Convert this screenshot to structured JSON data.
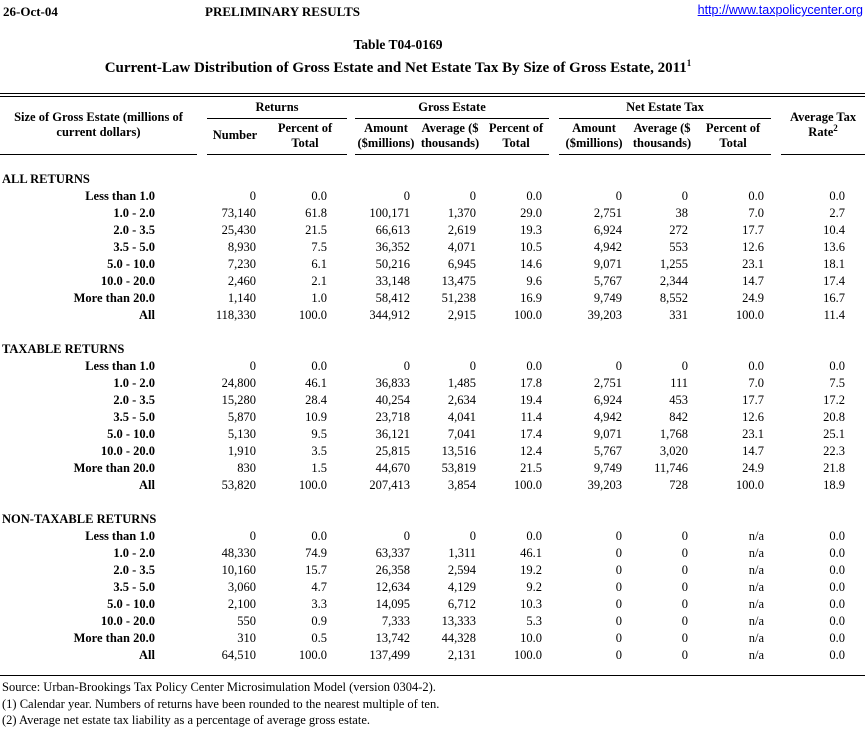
{
  "meta": {
    "date": "26-Oct-04",
    "status": "PRELIMINARY RESULTS",
    "url": "http://www.taxpolicycenter.org"
  },
  "title": {
    "table_number": "Table T04-0169",
    "main": "Current-Law Distribution of Gross Estate and Net Estate Tax By Size of Gross Estate, 2011",
    "superscript": "1"
  },
  "colors": {
    "link": "#0000ff",
    "text": "#000000"
  },
  "table": {
    "size_column_header": "Size of Gross Estate (millions of current dollars)",
    "groups": [
      {
        "label": "Returns",
        "columns": [
          "Number",
          "Percent of Total"
        ]
      },
      {
        "label": "Gross Estate",
        "columns": [
          "Amount ($millions)",
          "Average ($ thousands)",
          "Percent of Total"
        ]
      },
      {
        "label": "Net Estate Tax",
        "columns": [
          "Amount ($millions)",
          "Average ($ thousands)",
          "Percent of Total"
        ]
      }
    ],
    "rate_header": {
      "text": "Average Tax Rate",
      "superscript": "2"
    },
    "sections": [
      {
        "name": "ALL RETURNS",
        "rows": [
          {
            "label": "Less than 1.0",
            "values": [
              "0",
              "0.0",
              "0",
              "0",
              "0.0",
              "0",
              "0",
              "0.0",
              "0.0"
            ]
          },
          {
            "label": "1.0 - 2.0",
            "values": [
              "73,140",
              "61.8",
              "100,171",
              "1,370",
              "29.0",
              "2,751",
              "38",
              "7.0",
              "2.7"
            ]
          },
          {
            "label": "2.0 - 3.5",
            "values": [
              "25,430",
              "21.5",
              "66,613",
              "2,619",
              "19.3",
              "6,924",
              "272",
              "17.7",
              "10.4"
            ]
          },
          {
            "label": "3.5 - 5.0",
            "values": [
              "8,930",
              "7.5",
              "36,352",
              "4,071",
              "10.5",
              "4,942",
              "553",
              "12.6",
              "13.6"
            ]
          },
          {
            "label": "5.0 - 10.0",
            "values": [
              "7,230",
              "6.1",
              "50,216",
              "6,945",
              "14.6",
              "9,071",
              "1,255",
              "23.1",
              "18.1"
            ]
          },
          {
            "label": "10.0 - 20.0",
            "values": [
              "2,460",
              "2.1",
              "33,148",
              "13,475",
              "9.6",
              "5,767",
              "2,344",
              "14.7",
              "17.4"
            ]
          },
          {
            "label": "More than 20.0",
            "values": [
              "1,140",
              "1.0",
              "58,412",
              "51,238",
              "16.9",
              "9,749",
              "8,552",
              "24.9",
              "16.7"
            ]
          },
          {
            "label": "All",
            "values": [
              "118,330",
              "100.0",
              "344,912",
              "2,915",
              "100.0",
              "39,203",
              "331",
              "100.0",
              "11.4"
            ]
          }
        ]
      },
      {
        "name": "TAXABLE RETURNS",
        "rows": [
          {
            "label": "Less than 1.0",
            "values": [
              "0",
              "0.0",
              "0",
              "0",
              "0.0",
              "0",
              "0",
              "0.0",
              "0.0"
            ]
          },
          {
            "label": "1.0 - 2.0",
            "values": [
              "24,800",
              "46.1",
              "36,833",
              "1,485",
              "17.8",
              "2,751",
              "111",
              "7.0",
              "7.5"
            ]
          },
          {
            "label": "2.0 - 3.5",
            "values": [
              "15,280",
              "28.4",
              "40,254",
              "2,634",
              "19.4",
              "6,924",
              "453",
              "17.7",
              "17.2"
            ]
          },
          {
            "label": "3.5 - 5.0",
            "values": [
              "5,870",
              "10.9",
              "23,718",
              "4,041",
              "11.4",
              "4,942",
              "842",
              "12.6",
              "20.8"
            ]
          },
          {
            "label": "5.0 - 10.0",
            "values": [
              "5,130",
              "9.5",
              "36,121",
              "7,041",
              "17.4",
              "9,071",
              "1,768",
              "23.1",
              "25.1"
            ]
          },
          {
            "label": "10.0 - 20.0",
            "values": [
              "1,910",
              "3.5",
              "25,815",
              "13,516",
              "12.4",
              "5,767",
              "3,020",
              "14.7",
              "22.3"
            ]
          },
          {
            "label": "More than 20.0",
            "values": [
              "830",
              "1.5",
              "44,670",
              "53,819",
              "21.5",
              "9,749",
              "11,746",
              "24.9",
              "21.8"
            ]
          },
          {
            "label": "All",
            "values": [
              "53,820",
              "100.0",
              "207,413",
              "3,854",
              "100.0",
              "39,203",
              "728",
              "100.0",
              "18.9"
            ]
          }
        ]
      },
      {
        "name": "NON-TAXABLE RETURNS",
        "rows": [
          {
            "label": "Less than 1.0",
            "values": [
              "0",
              "0.0",
              "0",
              "0",
              "0.0",
              "0",
              "0",
              "n/a",
              "0.0"
            ]
          },
          {
            "label": "1.0 - 2.0",
            "values": [
              "48,330",
              "74.9",
              "63,337",
              "1,311",
              "46.1",
              "0",
              "0",
              "n/a",
              "0.0"
            ]
          },
          {
            "label": "2.0 - 3.5",
            "values": [
              "10,160",
              "15.7",
              "26,358",
              "2,594",
              "19.2",
              "0",
              "0",
              "n/a",
              "0.0"
            ]
          },
          {
            "label": "3.5 - 5.0",
            "values": [
              "3,060",
              "4.7",
              "12,634",
              "4,129",
              "9.2",
              "0",
              "0",
              "n/a",
              "0.0"
            ]
          },
          {
            "label": "5.0 - 10.0",
            "values": [
              "2,100",
              "3.3",
              "14,095",
              "6,712",
              "10.3",
              "0",
              "0",
              "n/a",
              "0.0"
            ]
          },
          {
            "label": "10.0 - 20.0",
            "values": [
              "550",
              "0.9",
              "7,333",
              "13,333",
              "5.3",
              "0",
              "0",
              "n/a",
              "0.0"
            ]
          },
          {
            "label": "More than 20.0",
            "values": [
              "310",
              "0.5",
              "13,742",
              "44,328",
              "10.0",
              "0",
              "0",
              "n/a",
              "0.0"
            ]
          },
          {
            "label": "All",
            "values": [
              "64,510",
              "100.0",
              "137,499",
              "2,131",
              "100.0",
              "0",
              "0",
              "n/a",
              "0.0"
            ]
          }
        ]
      }
    ]
  },
  "footnotes": {
    "source": "Source: Urban-Brookings Tax Policy Center Microsimulation Model (version 0304-2).",
    "note1": "(1) Calendar year. Numbers of returns have been rounded to the nearest multiple of ten.",
    "note2": "(2) Average net estate tax liability as a percentage of average gross estate."
  }
}
